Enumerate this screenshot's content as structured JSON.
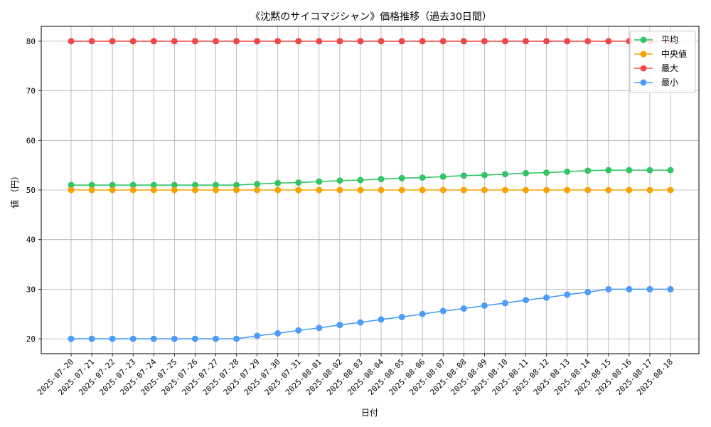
{
  "chart_data": {
    "type": "line",
    "title": "《沈黙のサイコマジシャン》価格推移（過去30日間）",
    "xlabel": "日付",
    "ylabel": "値 （円）",
    "ylim": [
      17,
      83
    ],
    "yticks": [
      20,
      30,
      40,
      50,
      60,
      70,
      80
    ],
    "grid": true,
    "legend_position": "top-right",
    "categories": [
      "2025-07-20",
      "2025-07-21",
      "2025-07-22",
      "2025-07-23",
      "2025-07-24",
      "2025-07-25",
      "2025-07-26",
      "2025-07-27",
      "2025-07-28",
      "2025-07-29",
      "2025-07-30",
      "2025-07-31",
      "2025-08-01",
      "2025-08-02",
      "2025-08-03",
      "2025-08-04",
      "2025-08-05",
      "2025-08-06",
      "2025-08-07",
      "2025-08-08",
      "2025-08-09",
      "2025-08-10",
      "2025-08-11",
      "2025-08-12",
      "2025-08-13",
      "2025-08-14",
      "2025-08-15",
      "2025-08-16",
      "2025-08-17",
      "2025-08-18"
    ],
    "series": [
      {
        "name": "平均",
        "color": "#33c466",
        "values": [
          51,
          51,
          51,
          51,
          51,
          51,
          51,
          51,
          51,
          51.2,
          51.4,
          51.5,
          51.7,
          51.9,
          52.0,
          52.2,
          52.4,
          52.5,
          52.7,
          52.9,
          53.0,
          53.2,
          53.4,
          53.5,
          53.7,
          53.9,
          54,
          54,
          54,
          54
        ]
      },
      {
        "name": "中央値",
        "color": "#f5a300",
        "values": [
          50,
          50,
          50,
          50,
          50,
          50,
          50,
          50,
          50,
          50,
          50,
          50,
          50,
          50,
          50,
          50,
          50,
          50,
          50,
          50,
          50,
          50,
          50,
          50,
          50,
          50,
          50,
          50,
          50,
          50
        ]
      },
      {
        "name": "最大",
        "color": "#f04848",
        "values": [
          80,
          80,
          80,
          80,
          80,
          80,
          80,
          80,
          80,
          80,
          80,
          80,
          80,
          80,
          80,
          80,
          80,
          80,
          80,
          80,
          80,
          80,
          80,
          80,
          80,
          80,
          80,
          80,
          80,
          80
        ]
      },
      {
        "name": "最小",
        "color": "#4d9cf7",
        "values": [
          20,
          20,
          20,
          20,
          20,
          20,
          20,
          20,
          20,
          20.6,
          21.1,
          21.7,
          22.2,
          22.8,
          23.3,
          23.9,
          24.4,
          25.0,
          25.6,
          26.1,
          26.7,
          27.2,
          27.8,
          28.3,
          28.9,
          29.4,
          30,
          30,
          30,
          30
        ]
      }
    ]
  }
}
